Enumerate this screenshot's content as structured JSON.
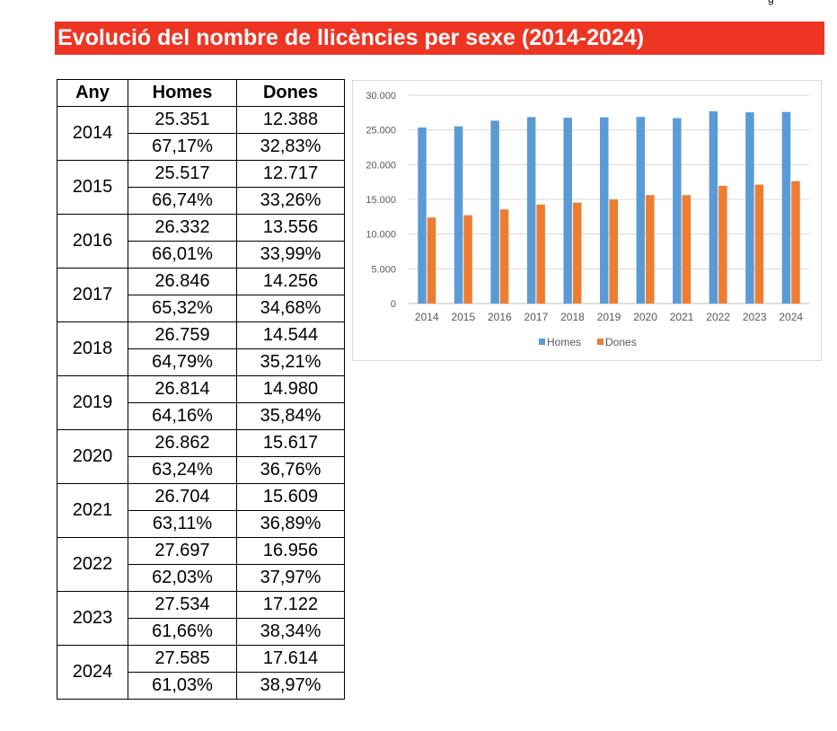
{
  "page": {
    "corner_mark": "g",
    "title": "Evolució del nombre de llicències per sexe (2014-2024)"
  },
  "table": {
    "headers": [
      "Any",
      "Homes",
      "Dones"
    ],
    "rows": [
      {
        "year": "2014",
        "men": "25.351",
        "women": "12.388",
        "men_pct": "67,17%",
        "women_pct": "32,83%"
      },
      {
        "year": "2015",
        "men": "25.517",
        "women": "12.717",
        "men_pct": "66,74%",
        "women_pct": "33,26%"
      },
      {
        "year": "2016",
        "men": "26.332",
        "women": "13.556",
        "men_pct": "66,01%",
        "women_pct": "33,99%"
      },
      {
        "year": "2017",
        "men": "26.846",
        "women": "14.256",
        "men_pct": "65,32%",
        "women_pct": "34,68%"
      },
      {
        "year": "2018",
        "men": "26.759",
        "women": "14.544",
        "men_pct": "64,79%",
        "women_pct": "35,21%"
      },
      {
        "year": "2019",
        "men": "26.814",
        "women": "14.980",
        "men_pct": "64,16%",
        "women_pct": "35,84%"
      },
      {
        "year": "2020",
        "men": "26.862",
        "women": "15.617",
        "men_pct": "63,24%",
        "women_pct": "36,76%"
      },
      {
        "year": "2021",
        "men": "26.704",
        "women": "15.609",
        "men_pct": "63,11%",
        "women_pct": "36,89%"
      },
      {
        "year": "2022",
        "men": "27.697",
        "women": "16.956",
        "men_pct": "62,03%",
        "women_pct": "37,97%"
      },
      {
        "year": "2023",
        "men": "27.534",
        "women": "17.122",
        "men_pct": "61,66%",
        "women_pct": "38,34%"
      },
      {
        "year": "2024",
        "men": "27.585",
        "women": "17.614",
        "men_pct": "61,03%",
        "women_pct": "38,97%"
      }
    ]
  },
  "chart_data": {
    "type": "bar",
    "categories": [
      "2014",
      "2015",
      "2016",
      "2017",
      "2018",
      "2019",
      "2020",
      "2021",
      "2022",
      "2023",
      "2024"
    ],
    "series": [
      {
        "name": "Homes",
        "color": "#5b9bd5",
        "values": [
          25351,
          25517,
          26332,
          26846,
          26759,
          26814,
          26862,
          26704,
          27697,
          27534,
          27585
        ]
      },
      {
        "name": "Dones",
        "color": "#ed7d31",
        "values": [
          12388,
          12717,
          13556,
          14256,
          14544,
          14980,
          15617,
          15609,
          16956,
          17122,
          17614
        ]
      }
    ],
    "y_ticks": [
      "0",
      "5.000",
      "10.000",
      "15.000",
      "20.000",
      "25.000",
      "30.000"
    ],
    "ylim": [
      0,
      30000
    ],
    "grid": true,
    "legend_position": "bottom",
    "title": "",
    "xlabel": "",
    "ylabel": ""
  }
}
